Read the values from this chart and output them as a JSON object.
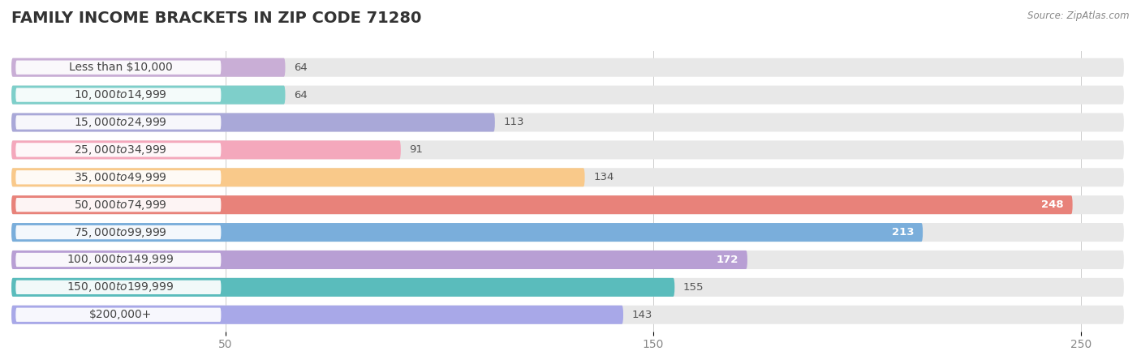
{
  "title": "FAMILY INCOME BRACKETS IN ZIP CODE 71280",
  "source": "Source: ZipAtlas.com",
  "categories": [
    "Less than $10,000",
    "$10,000 to $14,999",
    "$15,000 to $24,999",
    "$25,000 to $34,999",
    "$35,000 to $49,999",
    "$50,000 to $74,999",
    "$75,000 to $99,999",
    "$100,000 to $149,999",
    "$150,000 to $199,999",
    "$200,000+"
  ],
  "values": [
    64,
    64,
    113,
    91,
    134,
    248,
    213,
    172,
    155,
    143
  ],
  "bar_colors": [
    "#c9aed6",
    "#7ecfca",
    "#a9a8d8",
    "#f4a8bc",
    "#f9c98a",
    "#e8827a",
    "#7aaedb",
    "#b89fd4",
    "#5abcbc",
    "#a8a8e8"
  ],
  "xlim": [
    0,
    260
  ],
  "xticks": [
    50,
    150,
    250
  ],
  "bar_background_color": "#e8e8e8",
  "title_fontsize": 14,
  "label_fontsize": 10,
  "value_fontsize": 9.5,
  "bar_height": 0.68
}
